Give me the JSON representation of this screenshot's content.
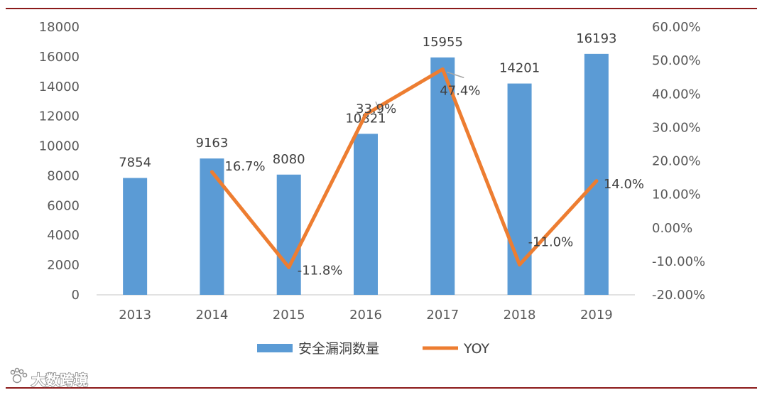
{
  "chart_data": {
    "type": "bar",
    "categories": [
      "2013",
      "2014",
      "2015",
      "2016",
      "2017",
      "2018",
      "2019"
    ],
    "series": [
      {
        "name": "安全漏洞数量",
        "type": "bar",
        "axis": "left",
        "color": "#5b9bd5",
        "values": [
          7854,
          9163,
          8080,
          10821,
          15955,
          14201,
          16193
        ],
        "data_labels": [
          "7854",
          "9163",
          "8080",
          "10821",
          "15955",
          "14201",
          "16193"
        ]
      },
      {
        "name": "YOY",
        "type": "line",
        "axis": "right",
        "color": "#ed7d31",
        "x": [
          "2014",
          "2015",
          "2016",
          "2017",
          "2018",
          "2019"
        ],
        "values": [
          16.7,
          -11.8,
          33.9,
          47.4,
          -11.0,
          14.0
        ],
        "data_labels": [
          "16.7%",
          "-11.8%",
          "33.9%",
          "47.4%",
          "-11.0%",
          "14.0%"
        ]
      }
    ],
    "y_left": {
      "range": [
        0,
        18000
      ],
      "tick_labels": [
        "0",
        "2000",
        "4000",
        "6000",
        "8000",
        "10000",
        "12000",
        "14000",
        "16000",
        "18000"
      ]
    },
    "y_right": {
      "range": [
        -20,
        60
      ],
      "unit": "%",
      "tick_labels": [
        "-20.00%",
        "-10.00%",
        "0.00%",
        "10.00%",
        "20.00%",
        "30.00%",
        "40.00%",
        "50.00%",
        "60.00%"
      ]
    },
    "grid": false,
    "legend": {
      "position": "bottom",
      "entries": [
        "安全漏洞数量",
        "YOY"
      ]
    },
    "frame_color": "#8b1a1a"
  },
  "watermark": {
    "text": "大数跨境",
    "icon": "paw-logo-icon"
  }
}
